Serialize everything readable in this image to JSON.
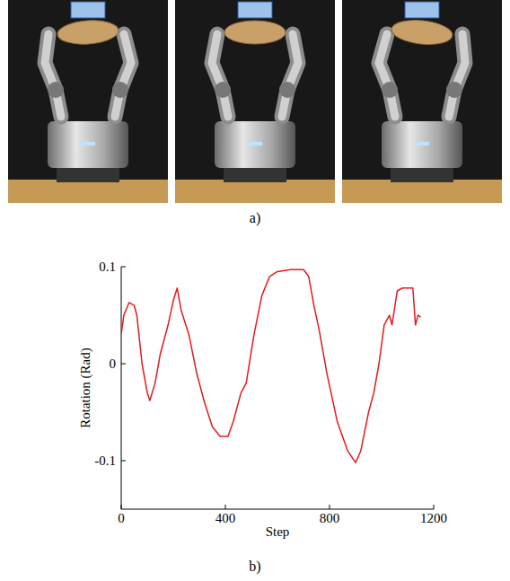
{
  "panel_labels": [
    "a)",
    "b)"
  ],
  "chart_data": {
    "type": "line",
    "x_label": "Step",
    "y_label": "Rotation (Rad)",
    "x": [
      0,
      10,
      30,
      50,
      60,
      80,
      100,
      110,
      130,
      150,
      180,
      200,
      215,
      230,
      260,
      290,
      320,
      350,
      380,
      410,
      430,
      460,
      480,
      510,
      540,
      570,
      600,
      650,
      700,
      720,
      740,
      760,
      790,
      830,
      870,
      900,
      920,
      950,
      970,
      990,
      1010,
      1030,
      1040,
      1060,
      1080,
      1120,
      1130,
      1140,
      1150
    ],
    "values": [
      0.03,
      0.05,
      0.063,
      0.06,
      0.05,
      0.0,
      -0.03,
      -0.038,
      -0.02,
      0.01,
      0.04,
      0.065,
      0.078,
      0.055,
      0.03,
      -0.01,
      -0.04,
      -0.065,
      -0.075,
      -0.075,
      -0.06,
      -0.03,
      -0.02,
      0.03,
      0.07,
      0.09,
      0.095,
      0.097,
      0.097,
      0.09,
      0.06,
      0.035,
      -0.01,
      -0.06,
      -0.09,
      -0.102,
      -0.09,
      -0.05,
      -0.03,
      0.0,
      0.04,
      0.05,
      0.04,
      0.075,
      0.078,
      0.078,
      0.04,
      0.05,
      0.048
    ],
    "color": "#e41a1c",
    "xlim": [
      0,
      1200
    ],
    "xticks": [
      0,
      400,
      800,
      1200
    ],
    "ylim": [
      -0.15,
      0.1
    ],
    "yticks": [
      -0.1,
      0,
      0.1
    ],
    "grid": false
  }
}
